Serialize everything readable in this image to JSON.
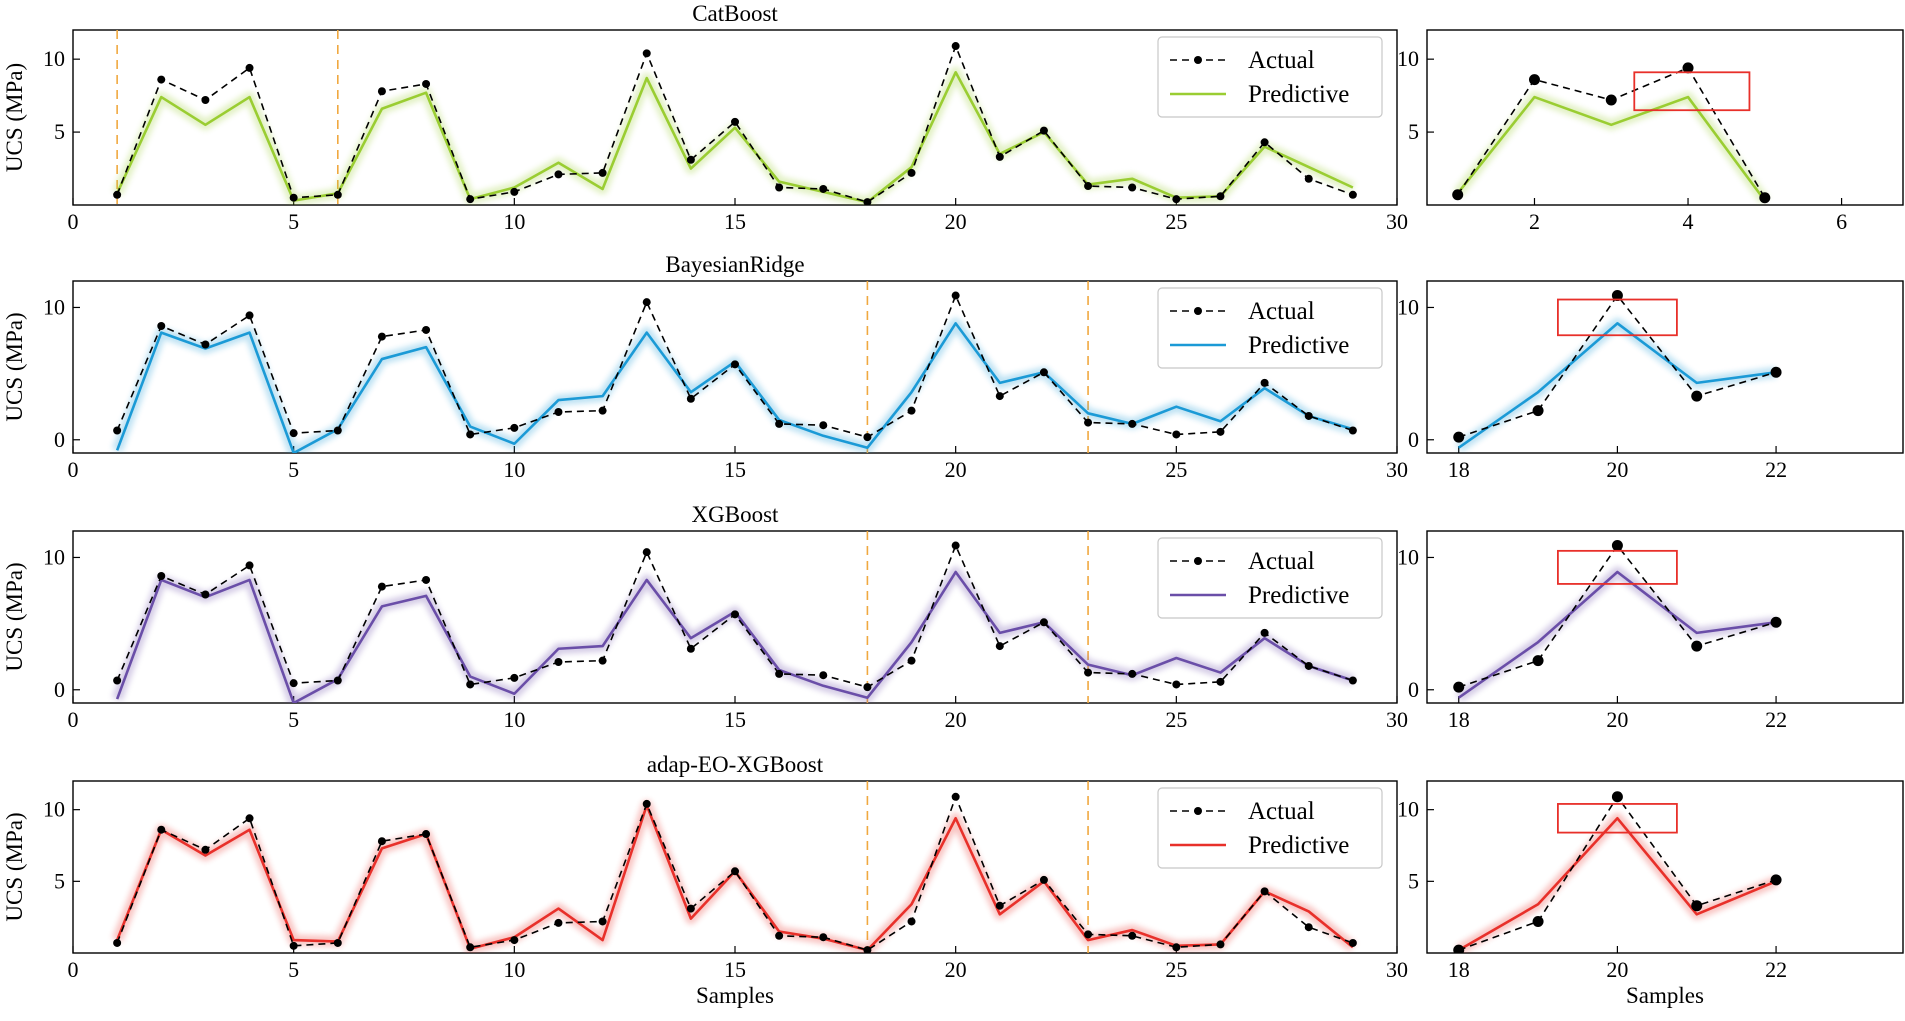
{
  "chart_data": [
    {
      "type": "line",
      "title": "CatBoost",
      "ylabel": "UCS (MPa)",
      "xlabel": "",
      "xlim": [
        0,
        30
      ],
      "ylim": [
        0,
        12
      ],
      "xticks": [
        0,
        5,
        10,
        15,
        20,
        25,
        30
      ],
      "yticks": [
        5,
        10
      ],
      "vlines": [
        1,
        6
      ],
      "legend": "top-right",
      "color": "#9acd32",
      "series": [
        {
          "name": "Actual",
          "style": "dashed-markers",
          "x": [
            1,
            2,
            3,
            4,
            5,
            6,
            7,
            8,
            9,
            10,
            11,
            12,
            13,
            14,
            15,
            16,
            17,
            18,
            19,
            20,
            21,
            22,
            23,
            24,
            25,
            26,
            27,
            28,
            29
          ],
          "values": [
            0.7,
            8.6,
            7.2,
            9.4,
            0.5,
            0.7,
            7.8,
            8.3,
            0.4,
            0.9,
            2.1,
            2.2,
            10.4,
            3.1,
            5.7,
            1.2,
            1.1,
            0.2,
            2.2,
            10.9,
            3.3,
            5.1,
            1.3,
            1.2,
            0.4,
            0.6,
            4.3,
            1.8,
            0.7
          ]
        },
        {
          "name": "Predictive",
          "style": "solid",
          "x": [
            1,
            2,
            3,
            4,
            5,
            6,
            7,
            8,
            9,
            10,
            11,
            12,
            13,
            14,
            15,
            16,
            17,
            18,
            19,
            20,
            21,
            22,
            23,
            24,
            25,
            26,
            27,
            28,
            29
          ],
          "values": [
            0.8,
            7.4,
            5.5,
            7.4,
            0.3,
            0.8,
            6.6,
            7.7,
            0.4,
            1.2,
            2.9,
            1.1,
            8.7,
            2.5,
            5.3,
            1.6,
            0.9,
            0.2,
            2.6,
            9.1,
            3.5,
            5.0,
            1.4,
            1.8,
            0.5,
            0.6,
            4.0,
            2.6,
            1.2
          ]
        }
      ]
    },
    {
      "type": "line",
      "title": "BayesianRidge",
      "ylabel": "UCS (MPa)",
      "xlabel": "",
      "xlim": [
        0,
        30
      ],
      "ylim": [
        -1,
        12
      ],
      "xticks": [
        0,
        5,
        10,
        15,
        20,
        25,
        30
      ],
      "yticks": [
        0,
        10
      ],
      "vlines": [
        18,
        23
      ],
      "legend": "top-right",
      "color": "#1b9ad6",
      "series": [
        {
          "name": "Actual",
          "style": "dashed-markers",
          "x": [
            1,
            2,
            3,
            4,
            5,
            6,
            7,
            8,
            9,
            10,
            11,
            12,
            13,
            14,
            15,
            16,
            17,
            18,
            19,
            20,
            21,
            22,
            23,
            24,
            25,
            26,
            27,
            28,
            29
          ],
          "values": [
            0.7,
            8.6,
            7.2,
            9.4,
            0.5,
            0.7,
            7.8,
            8.3,
            0.4,
            0.9,
            2.1,
            2.2,
            10.4,
            3.1,
            5.7,
            1.2,
            1.1,
            0.2,
            2.2,
            10.9,
            3.3,
            5.1,
            1.3,
            1.2,
            0.4,
            0.6,
            4.3,
            1.8,
            0.7
          ]
        },
        {
          "name": "Predictive",
          "style": "solid",
          "x": [
            1,
            2,
            3,
            4,
            5,
            6,
            7,
            8,
            9,
            10,
            11,
            12,
            13,
            14,
            15,
            16,
            17,
            18,
            19,
            20,
            21,
            22,
            23,
            24,
            25,
            26,
            27,
            28,
            29
          ],
          "values": [
            -0.8,
            8.1,
            6.9,
            8.1,
            -1.0,
            0.8,
            6.1,
            7.0,
            1.0,
            -0.3,
            3.0,
            3.3,
            8.1,
            3.6,
            5.9,
            1.5,
            0.3,
            -0.6,
            3.6,
            8.8,
            4.3,
            5.1,
            2.0,
            1.2,
            2.5,
            1.4,
            3.9,
            1.8,
            0.8
          ]
        }
      ]
    },
    {
      "type": "line",
      "title": "XGBoost",
      "ylabel": "UCS (MPa)",
      "xlabel": "",
      "xlim": [
        0,
        30
      ],
      "ylim": [
        -1,
        12
      ],
      "xticks": [
        0,
        5,
        10,
        15,
        20,
        25,
        30
      ],
      "yticks": [
        0,
        10
      ],
      "vlines": [
        18,
        23
      ],
      "legend": "top-right",
      "color": "#6a4ea8",
      "series": [
        {
          "name": "Actual",
          "style": "dashed-markers",
          "x": [
            1,
            2,
            3,
            4,
            5,
            6,
            7,
            8,
            9,
            10,
            11,
            12,
            13,
            14,
            15,
            16,
            17,
            18,
            19,
            20,
            21,
            22,
            23,
            24,
            25,
            26,
            27,
            28,
            29
          ],
          "values": [
            0.7,
            8.6,
            7.2,
            9.4,
            0.5,
            0.7,
            7.8,
            8.3,
            0.4,
            0.9,
            2.1,
            2.2,
            10.4,
            3.1,
            5.7,
            1.2,
            1.1,
            0.2,
            2.2,
            10.9,
            3.3,
            5.1,
            1.3,
            1.2,
            0.4,
            0.6,
            4.3,
            1.8,
            0.7
          ]
        },
        {
          "name": "Predictive",
          "style": "solid",
          "x": [
            1,
            2,
            3,
            4,
            5,
            6,
            7,
            8,
            9,
            10,
            11,
            12,
            13,
            14,
            15,
            16,
            17,
            18,
            19,
            20,
            21,
            22,
            23,
            24,
            25,
            26,
            27,
            28,
            29
          ],
          "values": [
            -0.7,
            8.3,
            7.0,
            8.3,
            -1.0,
            0.8,
            6.3,
            7.1,
            1.0,
            -0.3,
            3.1,
            3.3,
            8.3,
            3.9,
            5.9,
            1.5,
            0.3,
            -0.6,
            3.6,
            8.9,
            4.3,
            5.1,
            1.9,
            1.1,
            2.4,
            1.3,
            3.9,
            1.8,
            0.7
          ]
        }
      ]
    },
    {
      "type": "line",
      "title": "adap-EO-XGBoost",
      "ylabel": "UCS (MPa)",
      "xlabel": "Samples",
      "xlim": [
        0,
        30
      ],
      "ylim": [
        0,
        12
      ],
      "xticks": [
        0,
        5,
        10,
        15,
        20,
        25,
        30
      ],
      "yticks": [
        5,
        10
      ],
      "vlines": [
        18,
        23
      ],
      "legend": "top-right",
      "color": "#e8302a",
      "series": [
        {
          "name": "Actual",
          "style": "dashed-markers",
          "x": [
            1,
            2,
            3,
            4,
            5,
            6,
            7,
            8,
            9,
            10,
            11,
            12,
            13,
            14,
            15,
            16,
            17,
            18,
            19,
            20,
            21,
            22,
            23,
            24,
            25,
            26,
            27,
            28,
            29
          ],
          "values": [
            0.7,
            8.6,
            7.2,
            9.4,
            0.5,
            0.7,
            7.8,
            8.3,
            0.4,
            0.9,
            2.1,
            2.2,
            10.4,
            3.1,
            5.7,
            1.2,
            1.1,
            0.2,
            2.2,
            10.9,
            3.3,
            5.1,
            1.3,
            1.2,
            0.4,
            0.6,
            4.3,
            1.8,
            0.7
          ]
        },
        {
          "name": "Predictive",
          "style": "solid",
          "x": [
            1,
            2,
            3,
            4,
            5,
            6,
            7,
            8,
            9,
            10,
            11,
            12,
            13,
            14,
            15,
            16,
            17,
            18,
            19,
            20,
            21,
            22,
            23,
            24,
            25,
            26,
            27,
            28,
            29
          ],
          "values": [
            0.9,
            8.6,
            6.8,
            8.6,
            0.9,
            0.8,
            7.3,
            8.3,
            0.3,
            1.1,
            3.1,
            0.9,
            10.3,
            2.4,
            5.7,
            1.5,
            1.0,
            0.2,
            3.4,
            9.4,
            2.7,
            5.0,
            0.9,
            1.6,
            0.5,
            0.6,
            4.3,
            2.9,
            0.4
          ]
        }
      ]
    },
    {
      "type": "line",
      "title": "",
      "ylabel": "",
      "xlabel": "",
      "xlim": [
        0.6,
        6.8
      ],
      "ylim": [
        0,
        12
      ],
      "xticks": [
        2,
        4,
        6
      ],
      "yticks": [
        5,
        10
      ],
      "legend": "none",
      "color": "#9acd32",
      "highlight_box": {
        "x": [
          3.3,
          4.8
        ],
        "y": [
          6.5,
          9.1
        ]
      },
      "series": [
        {
          "name": "Actual",
          "style": "dashed-markers",
          "x": [
            1,
            2,
            3,
            4,
            5
          ],
          "values": [
            0.7,
            8.6,
            7.2,
            9.4,
            0.5
          ]
        },
        {
          "name": "Predictive",
          "style": "solid",
          "x": [
            1,
            2,
            3,
            4,
            5
          ],
          "values": [
            0.8,
            7.4,
            5.5,
            7.4,
            0.3
          ]
        }
      ]
    },
    {
      "type": "line",
      "title": "",
      "ylabel": "",
      "xlabel": "",
      "xlim": [
        17.6,
        23.6
      ],
      "ylim": [
        -1,
        12
      ],
      "xticks": [
        18,
        20,
        22
      ],
      "yticks": [
        0,
        10
      ],
      "legend": "none",
      "color": "#1b9ad6",
      "highlight_box": {
        "x": [
          19.25,
          20.75
        ],
        "y": [
          7.9,
          10.6
        ]
      },
      "series": [
        {
          "name": "Actual",
          "style": "dashed-markers",
          "x": [
            18,
            19,
            20,
            21,
            22
          ],
          "values": [
            0.2,
            2.2,
            10.9,
            3.3,
            5.1
          ]
        },
        {
          "name": "Predictive",
          "style": "solid",
          "x": [
            18,
            19,
            20,
            21,
            22
          ],
          "values": [
            -0.6,
            3.6,
            8.8,
            4.3,
            5.1
          ]
        }
      ]
    },
    {
      "type": "line",
      "title": "",
      "ylabel": "",
      "xlabel": "",
      "xlim": [
        17.6,
        23.6
      ],
      "ylim": [
        -1,
        12
      ],
      "xticks": [
        18,
        20,
        22
      ],
      "yticks": [
        0,
        10
      ],
      "legend": "none",
      "color": "#6a4ea8",
      "highlight_box": {
        "x": [
          19.25,
          20.75
        ],
        "y": [
          8.0,
          10.5
        ]
      },
      "series": [
        {
          "name": "Actual",
          "style": "dashed-markers",
          "x": [
            18,
            19,
            20,
            21,
            22
          ],
          "values": [
            0.2,
            2.2,
            10.9,
            3.3,
            5.1
          ]
        },
        {
          "name": "Predictive",
          "style": "solid",
          "x": [
            18,
            19,
            20,
            21,
            22
          ],
          "values": [
            -0.6,
            3.6,
            8.9,
            4.3,
            5.1
          ]
        }
      ]
    },
    {
      "type": "line",
      "title": "",
      "ylabel": "",
      "xlabel": "Samples",
      "xlim": [
        17.6,
        23.6
      ],
      "ylim": [
        0,
        12
      ],
      "xticks": [
        18,
        20,
        22
      ],
      "yticks": [
        5,
        10
      ],
      "legend": "none",
      "color": "#e8302a",
      "highlight_box": {
        "x": [
          19.25,
          20.75
        ],
        "y": [
          8.4,
          10.4
        ]
      },
      "series": [
        {
          "name": "Actual",
          "style": "dashed-markers",
          "x": [
            18,
            19,
            20,
            21,
            22
          ],
          "values": [
            0.2,
            2.2,
            10.9,
            3.3,
            5.1
          ]
        },
        {
          "name": "Predictive",
          "style": "solid",
          "x": [
            18,
            19,
            20,
            21,
            22
          ],
          "values": [
            0.2,
            3.4,
            9.4,
            2.7,
            5.0
          ]
        }
      ]
    }
  ]
}
